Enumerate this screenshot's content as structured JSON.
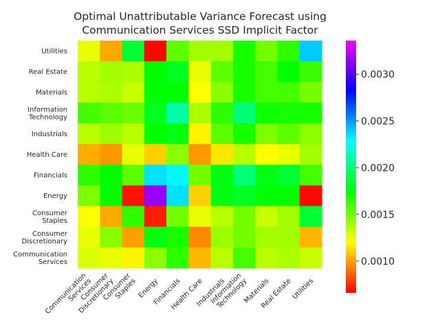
{
  "chart_data": {
    "type": "heatmap",
    "title": [
      "Optimal Unattributable Variance Forecast using",
      "Communication Services SSD Implicit Factor"
    ],
    "x_categories": [
      [
        "Communication",
        "Services"
      ],
      [
        "Consumer",
        "Discretionary"
      ],
      [
        "Consumer",
        "Staples"
      ],
      [
        "Energy"
      ],
      [
        "Financials"
      ],
      [
        "Health Care"
      ],
      [
        "Industrials"
      ],
      [
        "Information",
        "Technology"
      ],
      [
        "Materials"
      ],
      [
        "Real Estate"
      ],
      [
        "Utilities"
      ]
    ],
    "y_categories": [
      [
        "Utilities"
      ],
      [
        "Real Estate"
      ],
      [
        "Materials"
      ],
      [
        "Information",
        "Technology"
      ],
      [
        "Industrials"
      ],
      [
        "Health Care"
      ],
      [
        "Financials"
      ],
      [
        "Energy"
      ],
      [
        "Consumer",
        "Staples"
      ],
      [
        "Consumer",
        "Discretionary"
      ],
      [
        "Communication",
        "Services"
      ]
    ],
    "values": [
      [
        0.00125,
        0.00102,
        0.00185,
        0.00067,
        0.00155,
        0.0014,
        0.0014,
        0.0017,
        0.0015,
        0.00165,
        0.0024
      ],
      [
        0.00135,
        0.0014,
        0.00138,
        0.00175,
        0.00182,
        0.00125,
        0.00155,
        0.0017,
        0.0016,
        0.00175,
        0.00162
      ],
      [
        0.00135,
        0.00138,
        0.00132,
        0.00175,
        0.00175,
        0.0012,
        0.00145,
        0.0017,
        0.0016,
        0.0016,
        0.0015
      ],
      [
        0.0016,
        0.00155,
        0.00152,
        0.0018,
        0.0021,
        0.00138,
        0.00165,
        0.002,
        0.00172,
        0.0017,
        0.0017
      ],
      [
        0.00135,
        0.00142,
        0.00135,
        0.00175,
        0.00178,
        0.00118,
        0.00155,
        0.0017,
        0.00148,
        0.00155,
        0.00145
      ],
      [
        0.00103,
        0.00098,
        0.00125,
        0.0011,
        0.00145,
        0.00098,
        0.00115,
        0.00135,
        0.0012,
        0.00125,
        0.0014
      ],
      [
        0.00165,
        0.00175,
        0.00155,
        0.00235,
        0.0023,
        0.0015,
        0.00178,
        0.002,
        0.00178,
        0.00185,
        0.0016
      ],
      [
        0.00148,
        0.00175,
        0.0007,
        0.00315,
        0.00235,
        0.0011,
        0.00178,
        0.00182,
        0.00175,
        0.00175,
        0.00068
      ],
      [
        0.0012,
        0.00102,
        0.00165,
        0.00072,
        0.0015,
        0.00125,
        0.00135,
        0.0015,
        0.00132,
        0.0014,
        0.00185
      ],
      [
        0.00125,
        0.00145,
        0.001,
        0.00178,
        0.0017,
        0.00095,
        0.00142,
        0.0015,
        0.0014,
        0.0014,
        0.00105
      ],
      [
        0.00128,
        0.00125,
        0.00118,
        0.00145,
        0.00165,
        0.00105,
        0.00135,
        0.0016,
        0.00135,
        0.00138,
        0.00132
      ]
    ],
    "colormap": "gist_rainbow_r",
    "vmin": 0.00066,
    "vmax": 0.00336,
    "colorbar_ticks": [
      0.001,
      0.0015,
      0.002,
      0.0025,
      0.003
    ],
    "colorbar_tick_labels": [
      "0.0010",
      "0.0015",
      "0.0020",
      "0.0025",
      "0.0030"
    ],
    "grid": false
  }
}
